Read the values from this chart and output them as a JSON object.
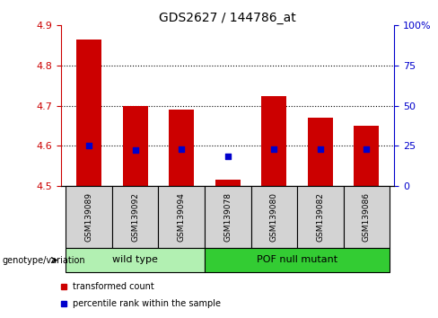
{
  "title": "GDS2627 / 144786_at",
  "samples": [
    "GSM139089",
    "GSM139092",
    "GSM139094",
    "GSM139078",
    "GSM139080",
    "GSM139082",
    "GSM139086"
  ],
  "bar_values": [
    4.865,
    4.7,
    4.69,
    4.515,
    4.725,
    4.67,
    4.65
  ],
  "percentile_values": [
    4.6,
    4.59,
    4.593,
    4.575,
    4.592,
    4.592,
    4.592
  ],
  "ylim": [
    4.5,
    4.9
  ],
  "yticks_left": [
    4.5,
    4.6,
    4.7,
    4.8,
    4.9
  ],
  "yticks_right": [
    0,
    25,
    50,
    75,
    100
  ],
  "ytick_right_labels": [
    "0",
    "25",
    "50",
    "75",
    "100%"
  ],
  "dotted_lines": [
    4.6,
    4.7,
    4.8
  ],
  "groups": [
    {
      "label": "wild type",
      "indices": [
        0,
        1,
        2
      ],
      "color": "#b2f0b2"
    },
    {
      "label": "POF null mutant",
      "indices": [
        3,
        4,
        5,
        6
      ],
      "color": "#33cc33"
    }
  ],
  "bar_color": "#cc0000",
  "percentile_color": "#0000cc",
  "bar_width": 0.55,
  "genotype_label": "genotype/variation",
  "legend_items": [
    {
      "label": "transformed count",
      "color": "#cc0000"
    },
    {
      "label": "percentile rank within the sample",
      "color": "#0000cc"
    }
  ],
  "left_axis_color": "#cc0000",
  "right_axis_color": "#0000cc",
  "background_color": "#ffffff",
  "title_fontsize": 10,
  "tick_fontsize": 8
}
